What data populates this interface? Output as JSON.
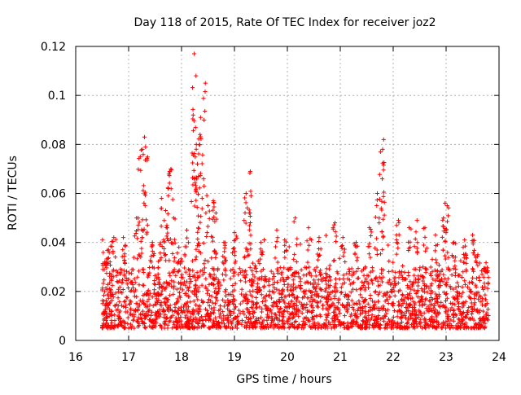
{
  "chart_data": {
    "type": "scatter",
    "title": "Day 118 of 2015, Rate Of TEC Index for receiver joz2",
    "xlabel": "GPS time / hours",
    "ylabel": "ROTI / TECUs",
    "xlim": [
      16,
      24
    ],
    "ylim": [
      0,
      0.12
    ],
    "grid": true,
    "marker": "+",
    "marker_color": "#ff0000",
    "x_ticks": [
      16,
      17,
      18,
      19,
      20,
      21,
      22,
      23,
      24
    ],
    "x_tick_labels": [
      "16",
      "17",
      "18",
      "19",
      "20",
      "21",
      "22",
      "23",
      "24"
    ],
    "y_ticks": [
      0,
      0.02,
      0.04,
      0.06,
      0.08,
      0.1,
      0.12
    ],
    "y_tick_labels": [
      "0",
      "0.02",
      "0.04",
      "0.06",
      "0.08",
      "0.1",
      "0.12"
    ],
    "data_range_x": [
      16.5,
      23.8
    ],
    "baseline_band_y": [
      0.005,
      0.03
    ],
    "peaks": [
      {
        "x": 16.55,
        "y": 0.032
      },
      {
        "x": 16.62,
        "y": 0.037
      },
      {
        "x": 16.72,
        "y": 0.042
      },
      {
        "x": 16.9,
        "y": 0.042
      },
      {
        "x": 17.15,
        "y": 0.05
      },
      {
        "x": 17.22,
        "y": 0.075
      },
      {
        "x": 17.26,
        "y": 0.078
      },
      {
        "x": 17.3,
        "y": 0.083
      },
      {
        "x": 17.32,
        "y": 0.079
      },
      {
        "x": 17.45,
        "y": 0.04
      },
      {
        "x": 17.62,
        "y": 0.058
      },
      {
        "x": 17.7,
        "y": 0.053
      },
      {
        "x": 17.75,
        "y": 0.062
      },
      {
        "x": 17.78,
        "y": 0.069
      },
      {
        "x": 17.8,
        "y": 0.07
      },
      {
        "x": 17.85,
        "y": 0.05
      },
      {
        "x": 17.95,
        "y": 0.038
      },
      {
        "x": 18.1,
        "y": 0.045
      },
      {
        "x": 18.22,
        "y": 0.092
      },
      {
        "x": 18.28,
        "y": 0.08
      },
      {
        "x": 18.3,
        "y": 0.072
      },
      {
        "x": 18.32,
        "y": 0.067
      },
      {
        "x": 18.35,
        "y": 0.084
      },
      {
        "x": 18.36,
        "y": 0.091
      },
      {
        "x": 18.24,
        "y": 0.117
      },
      {
        "x": 18.45,
        "y": 0.105
      },
      {
        "x": 18.5,
        "y": 0.055
      },
      {
        "x": 18.6,
        "y": 0.057
      },
      {
        "x": 18.65,
        "y": 0.052
      },
      {
        "x": 18.8,
        "y": 0.04
      },
      {
        "x": 19.0,
        "y": 0.044
      },
      {
        "x": 19.22,
        "y": 0.06
      },
      {
        "x": 19.28,
        "y": 0.052
      },
      {
        "x": 19.3,
        "y": 0.069
      },
      {
        "x": 19.5,
        "y": 0.04
      },
      {
        "x": 19.8,
        "y": 0.045
      },
      {
        "x": 19.95,
        "y": 0.041
      },
      {
        "x": 20.15,
        "y": 0.05
      },
      {
        "x": 20.4,
        "y": 0.046
      },
      {
        "x": 20.6,
        "y": 0.042
      },
      {
        "x": 20.9,
        "y": 0.048
      },
      {
        "x": 21.05,
        "y": 0.042
      },
      {
        "x": 21.3,
        "y": 0.04
      },
      {
        "x": 21.55,
        "y": 0.046
      },
      {
        "x": 21.7,
        "y": 0.06
      },
      {
        "x": 21.76,
        "y": 0.077
      },
      {
        "x": 21.8,
        "y": 0.078
      },
      {
        "x": 21.82,
        "y": 0.082
      },
      {
        "x": 22.1,
        "y": 0.049
      },
      {
        "x": 22.3,
        "y": 0.046
      },
      {
        "x": 22.45,
        "y": 0.049
      },
      {
        "x": 22.6,
        "y": 0.046
      },
      {
        "x": 22.8,
        "y": 0.043
      },
      {
        "x": 22.95,
        "y": 0.05
      },
      {
        "x": 22.98,
        "y": 0.056
      },
      {
        "x": 23.02,
        "y": 0.055
      },
      {
        "x": 23.15,
        "y": 0.04
      },
      {
        "x": 23.35,
        "y": 0.041
      },
      {
        "x": 23.5,
        "y": 0.043
      },
      {
        "x": 23.6,
        "y": 0.035
      },
      {
        "x": 23.75,
        "y": 0.028
      }
    ]
  }
}
